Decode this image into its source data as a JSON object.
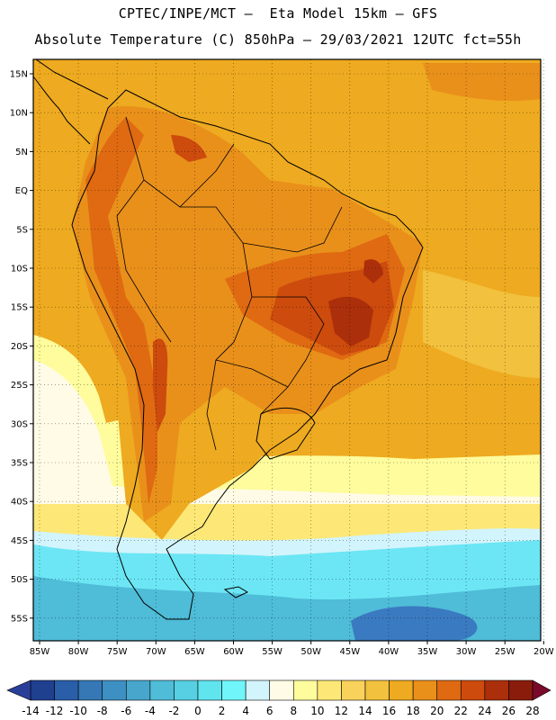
{
  "title_line1": "CPTEC/INPE/MCT –  Eta Model 15km – GFS",
  "title_line2": "Absolute Temperature (C) 850hPa – 29/03/2021 12UTC fct=55h",
  "lat_labels": [
    "15N",
    "10N",
    "5N",
    "EQ",
    "5S",
    "10S",
    "15S",
    "20S",
    "25S",
    "30S",
    "35S",
    "40S",
    "45S",
    "50S",
    "55S"
  ],
  "lon_labels": [
    "85W",
    "80W",
    "75W",
    "70W",
    "65W",
    "60W",
    "55W",
    "50W",
    "45W",
    "40W",
    "35W",
    "30W",
    "25W",
    "20W"
  ],
  "colorbar": {
    "labels": [
      "-14",
      "-12",
      "-10",
      "-8",
      "-6",
      "-4",
      "-2",
      "0",
      "2",
      "4",
      "6",
      "8",
      "10",
      "12",
      "14",
      "16",
      "18",
      "20",
      "22",
      "24",
      "26",
      "28"
    ],
    "colors": [
      "#1f3f8f",
      "#2a5ea8",
      "#3578b5",
      "#3f90c2",
      "#48a6cc",
      "#4fbcd8",
      "#56d0e2",
      "#60e4ee",
      "#70f6fa",
      "#d2f4fc",
      "#fffbe6",
      "#fefc9c",
      "#fde877",
      "#f8d25a",
      "#f2c13d",
      "#eeaa20",
      "#e9901b",
      "#df6a12",
      "#cc4b0d",
      "#ab2f0a",
      "#8a1c0c"
    ],
    "under_color": "#2a3f9a",
    "over_color": "#7a0a2a"
  },
  "map_colors": {
    "ocean_south_deep": "#3a7ac0",
    "ocean_south_mid": "#4fbcd8",
    "ocean_south_light": "#6ce6f4",
    "pale_cyan": "#d2f4fc",
    "cream": "#fffbe6",
    "pale_yellow": "#fefc9c",
    "yellow": "#fde877",
    "gold": "#f2c13d",
    "orange": "#eeaa20",
    "dark_orange": "#e9901b",
    "red_orange": "#df6a12",
    "red": "#cc4b0d",
    "dark_red": "#ab2f0a"
  }
}
